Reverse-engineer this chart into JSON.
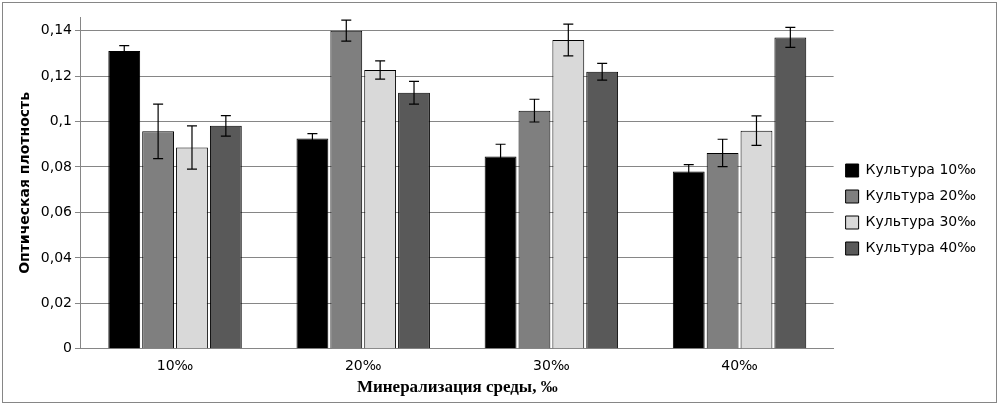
{
  "chart_data": {
    "type": "bar",
    "xlabel": "Минерализация среды, ‰",
    "ylabel": "Оптическая плотность",
    "categories": [
      "10‰",
      "20‰",
      "30‰",
      "40‰"
    ],
    "series": [
      {
        "name": "Культура 10‰",
        "color": "#000000",
        "values": [
          0.131,
          0.0925,
          0.0846,
          0.078
        ],
        "errors": [
          0.0024,
          0.0022,
          0.0054,
          0.003
        ]
      },
      {
        "name": "Культура 20‰",
        "color": "#7f7f7f",
        "values": [
          0.0957,
          0.14,
          0.1048,
          0.0862
        ],
        "errors": [
          0.012,
          0.0046,
          0.005,
          0.006
        ]
      },
      {
        "name": "Культура 30‰",
        "color": "#d9d9d9",
        "values": [
          0.0886,
          0.1227,
          0.1359,
          0.096
        ],
        "errors": [
          0.0095,
          0.004,
          0.007,
          0.0065
        ]
      },
      {
        "name": "Культура 40‰",
        "color": "#595959",
        "values": [
          0.0981,
          0.1127,
          0.1219,
          0.137
        ],
        "errors": [
          0.0045,
          0.005,
          0.0037,
          0.0044
        ]
      }
    ],
    "ylim": [
      0,
      0.146
    ],
    "yticks": [
      0,
      {
        "value": 0.02,
        "label": "0,02"
      },
      {
        "value": 0.04,
        "label": "0,04"
      },
      {
        "value": 0.06,
        "label": "0,06"
      },
      {
        "value": 0.08,
        "label": "0,08"
      },
      {
        "value": 0.1,
        "label": "0,1"
      },
      {
        "value": 0.12,
        "label": "0,12"
      },
      {
        "value": 0.14,
        "label": "0,14"
      }
    ],
    "grid": "y",
    "legend": "right"
  }
}
